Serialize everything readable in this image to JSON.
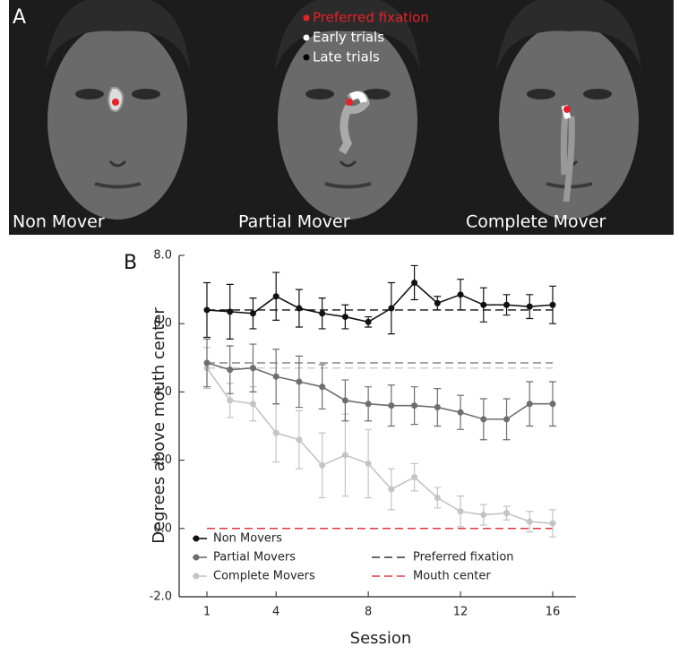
{
  "panel_labels": [
    "A",
    "B"
  ],
  "panel_a": {
    "legend": [
      {
        "label": "Preferred fixation",
        "color": "#e8202a"
      },
      {
        "label": "Early trials",
        "color": "#ffffff"
      },
      {
        "label": "Late trials",
        "color": "#000000"
      }
    ],
    "labels": [
      "Non Mover",
      "Partial Mover",
      "Complete Mover"
    ]
  },
  "chart_data": {
    "type": "line",
    "x_label": "Session",
    "y_label": "Degrees above mouth center",
    "x": [
      1,
      2,
      3,
      4,
      5,
      6,
      7,
      8,
      9,
      10,
      11,
      12,
      13,
      14,
      15,
      16
    ],
    "xlim": [
      -0.2,
      17
    ],
    "xticks": [
      1,
      4,
      8,
      12,
      16
    ],
    "ylim": [
      -2,
      8
    ],
    "yticks": [
      {
        "value": -2,
        "label": "-2.0"
      },
      {
        "value": 0,
        "label": "0.0"
      },
      {
        "value": 2,
        "label": "2.0"
      },
      {
        "value": 4,
        "label": "4.0"
      },
      {
        "value": 6,
        "label": "6.0"
      },
      {
        "value": 8,
        "label": "8.0"
      }
    ],
    "series": [
      {
        "name": "Non Movers",
        "color": "#111111",
        "preferred_fixation": 6.4,
        "values": [
          6.4,
          6.35,
          6.3,
          6.8,
          6.45,
          6.3,
          6.2,
          6.05,
          6.45,
          7.2,
          6.6,
          6.85,
          6.55,
          6.55,
          6.5,
          6.55
        ],
        "errors": [
          0.8,
          0.8,
          0.45,
          0.7,
          0.55,
          0.45,
          0.35,
          0.15,
          0.75,
          0.5,
          0.2,
          0.45,
          0.5,
          0.3,
          0.35,
          0.55
        ]
      },
      {
        "name": "Partial Movers",
        "color": "#6e6e6e",
        "preferred_fixation": 4.85,
        "values": [
          4.85,
          4.65,
          4.7,
          4.45,
          4.3,
          4.15,
          3.75,
          3.65,
          3.6,
          3.6,
          3.55,
          3.4,
          3.2,
          3.2,
          3.65,
          3.65
        ],
        "errors": [
          0.7,
          0.7,
          0.7,
          0.8,
          0.75,
          0.65,
          0.6,
          0.5,
          0.6,
          0.55,
          0.55,
          0.5,
          0.6,
          0.6,
          0.65,
          0.65
        ]
      },
      {
        "name": "Complete Movers",
        "color": "#c4c4c4",
        "preferred_fixation": 4.7,
        "values": [
          4.7,
          3.75,
          3.65,
          2.8,
          2.6,
          1.85,
          2.15,
          1.9,
          1.15,
          1.5,
          0.9,
          0.5,
          0.4,
          0.45,
          0.2,
          0.15
        ],
        "errors": [
          0.6,
          0.5,
          0.5,
          0.85,
          0.85,
          0.95,
          1.2,
          1.0,
          0.6,
          0.4,
          0.3,
          0.45,
          0.3,
          0.2,
          0.3,
          0.4
        ]
      }
    ],
    "reference_legend": [
      {
        "name": "Preferred fixation",
        "color": "#333333"
      },
      {
        "name": "Mouth center",
        "color": "#e0393e",
        "value": 0
      }
    ]
  }
}
